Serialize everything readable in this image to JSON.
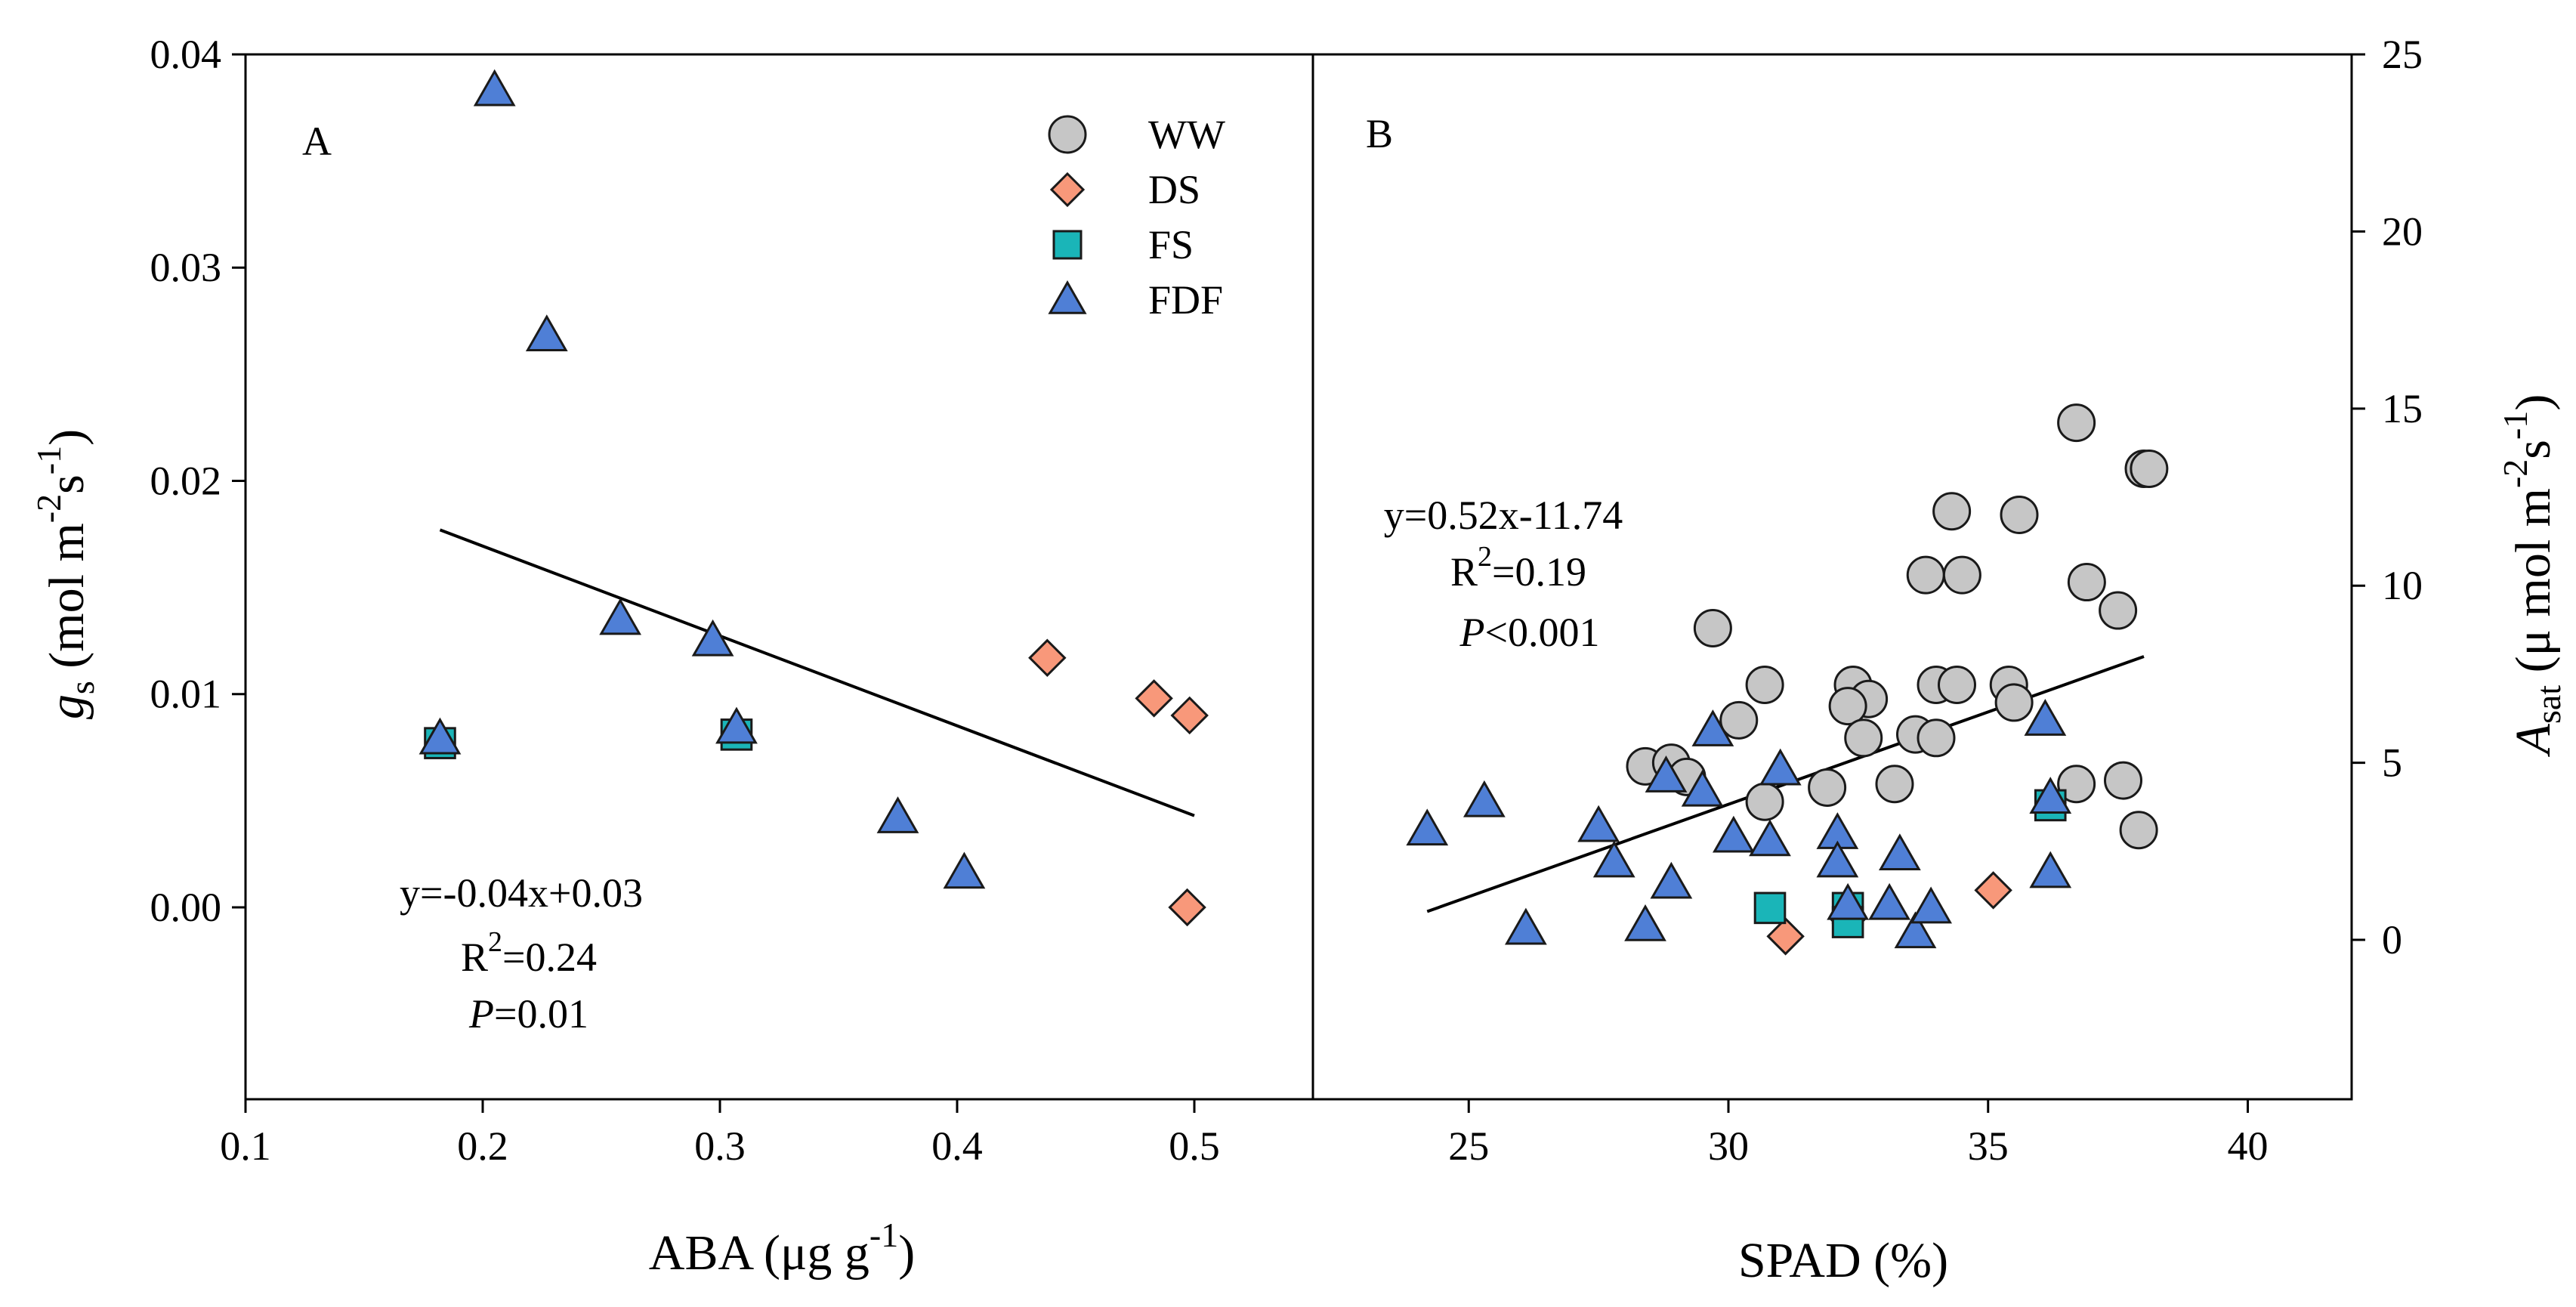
{
  "colors": {
    "WW": "#c6c6c6",
    "DS": "#f8987a",
    "FS": "#1ab5b8",
    "FDF": "#4f7fd6"
  },
  "legend": [
    {
      "label": "WW",
      "marker": "circle"
    },
    {
      "label": "DS",
      "marker": "diamond"
    },
    {
      "label": "FS",
      "marker": "square"
    },
    {
      "label": "FDF",
      "marker": "triangle"
    }
  ],
  "chart_data": [
    {
      "type": "scatter",
      "panel_label": "A",
      "xlabel": "ABA (μg g",
      "xlabel_sup": "-1",
      "xlabel_close": ")",
      "ylabel_var": "g",
      "ylabel_sub": "s",
      "ylabel_unit": " (mol m",
      "ylabel_sup1": "-2",
      "ylabel_mid": "s",
      "ylabel_sup2": "-1",
      "ylabel_close": ")",
      "xlim": [
        0.1,
        0.55
      ],
      "ylim": [
        -0.009,
        0.04
      ],
      "xticks": [
        0.1,
        0.2,
        0.3,
        0.4,
        0.5
      ],
      "xtick_labels": [
        "0.1",
        "0.2",
        "0.3",
        "0.4",
        "0.5"
      ],
      "yticks": [
        0.0,
        0.01,
        0.02,
        0.03,
        0.04
      ],
      "ytick_labels": [
        "0.00",
        "0.01",
        "0.02",
        "0.03",
        "0.04"
      ],
      "series": [
        {
          "name": "DS",
          "points": [
            [
              0.438,
              0.0117
            ],
            [
              0.483,
              0.0098
            ],
            [
              0.498,
              0.009
            ],
            [
              0.497,
              0.0
            ]
          ]
        },
        {
          "name": "FS",
          "points": [
            [
              0.182,
              0.0077
            ],
            [
              0.307,
              0.0081
            ]
          ]
        },
        {
          "name": "FDF",
          "points": [
            [
              0.205,
              0.0383
            ],
            [
              0.227,
              0.0268
            ],
            [
              0.258,
              0.0135
            ],
            [
              0.297,
              0.0125
            ],
            [
              0.182,
              0.0079
            ],
            [
              0.307,
              0.0084
            ],
            [
              0.375,
              0.0042
            ],
            [
              0.403,
              0.0016
            ]
          ]
        }
      ],
      "fit": {
        "x": [
          0.182,
          0.5
        ],
        "y": [
          0.0177,
          0.0043
        ]
      },
      "equation": {
        "line1": "y=-0.04x+0.03",
        "r2_prefix": "R",
        "r2_sup": "2",
        "r2_value": "=0.24",
        "p_var": "P",
        "p_value": "=0.01"
      }
    },
    {
      "type": "scatter",
      "panel_label": "B",
      "xlabel": "SPAD (%)",
      "ylabel_var": "A",
      "ylabel_sub": "sat",
      "ylabel_unit": " (μ mol m",
      "ylabel_sup1": "-2",
      "ylabel_mid": "s",
      "ylabel_sup2": "-1",
      "ylabel_close": ")",
      "xlim": [
        22,
        42
      ],
      "ylim": [
        -4.5,
        25
      ],
      "xticks": [
        25,
        30,
        35,
        40
      ],
      "xtick_labels": [
        "25",
        "30",
        "35",
        "40"
      ],
      "yticks": [
        0,
        5,
        10,
        15,
        20,
        25
      ],
      "ytick_labels": [
        "0",
        "5",
        "10",
        "15",
        "20",
        "25"
      ],
      "series": [
        {
          "name": "WW",
          "points": [
            [
              36.7,
              14.6
            ],
            [
              38.0,
              13.3
            ],
            [
              38.1,
              13.3
            ],
            [
              34.3,
              12.1
            ],
            [
              35.6,
              12.0
            ],
            [
              29.7,
              8.8
            ],
            [
              33.8,
              10.3
            ],
            [
              34.5,
              10.3
            ],
            [
              36.9,
              10.1
            ],
            [
              37.5,
              9.3
            ],
            [
              30.7,
              7.2
            ],
            [
              30.2,
              6.2
            ],
            [
              32.4,
              7.2
            ],
            [
              32.7,
              6.8
            ],
            [
              34.0,
              7.2
            ],
            [
              34.4,
              7.2
            ],
            [
              35.4,
              7.2
            ],
            [
              35.5,
              6.7
            ],
            [
              32.3,
              6.6
            ],
            [
              32.6,
              5.7
            ],
            [
              33.6,
              5.8
            ],
            [
              34.0,
              5.7
            ],
            [
              28.4,
              4.9
            ],
            [
              28.9,
              5.0
            ],
            [
              29.2,
              4.6
            ],
            [
              31.9,
              4.3
            ],
            [
              33.2,
              4.4
            ],
            [
              30.7,
              3.9
            ],
            [
              36.7,
              4.4
            ],
            [
              37.6,
              4.5
            ],
            [
              37.9,
              3.1
            ]
          ]
        },
        {
          "name": "DS",
          "points": [
            [
              32.3,
              0.6
            ],
            [
              31.1,
              0.1
            ],
            [
              35.1,
              1.4
            ]
          ]
        },
        {
          "name": "FS",
          "points": [
            [
              30.8,
              0.9
            ],
            [
              32.3,
              0.9
            ],
            [
              32.3,
              0.5
            ],
            [
              36.2,
              3.8
            ]
          ]
        },
        {
          "name": "FDF",
          "points": [
            [
              24.2,
              3.1
            ],
            [
              25.3,
              3.9
            ],
            [
              26.1,
              0.3
            ],
            [
              27.5,
              3.2
            ],
            [
              27.8,
              2.2
            ],
            [
              28.4,
              0.4
            ],
            [
              28.8,
              4.6
            ],
            [
              28.9,
              1.6
            ],
            [
              29.5,
              4.2
            ],
            [
              29.7,
              5.9
            ],
            [
              30.1,
              2.9
            ],
            [
              30.8,
              2.8
            ],
            [
              31.0,
              4.8
            ],
            [
              32.1,
              3.0
            ],
            [
              32.1,
              2.2
            ],
            [
              32.3,
              1.0
            ],
            [
              33.1,
              1.0
            ],
            [
              33.3,
              2.4
            ],
            [
              33.6,
              0.2
            ],
            [
              33.9,
              0.9
            ],
            [
              36.1,
              6.2
            ],
            [
              36.2,
              1.9
            ],
            [
              36.2,
              4.0
            ]
          ]
        }
      ],
      "fit": {
        "x": [
          24.2,
          38.0
        ],
        "y": [
          0.8,
          8.0
        ]
      },
      "equation": {
        "line1": "y=0.52x-11.74",
        "r2_prefix": "R",
        "r2_sup": "2",
        "r2_value": "=0.19",
        "p_var": "P",
        "p_value": "<0.001"
      }
    }
  ]
}
